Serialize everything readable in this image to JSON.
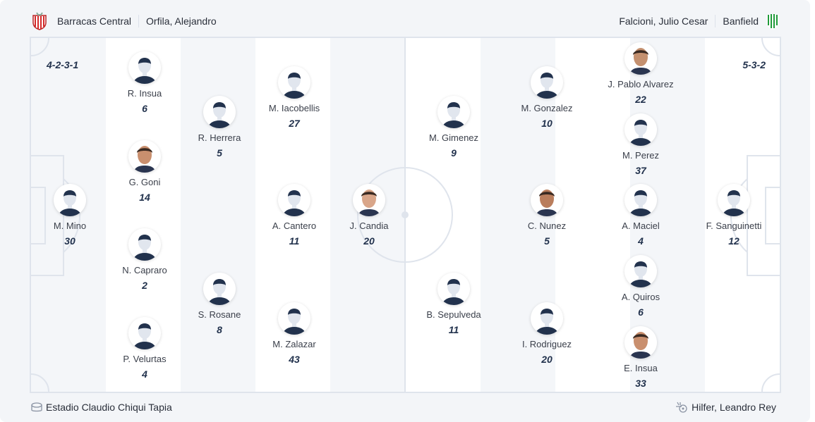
{
  "home": {
    "team": "Barracas Central",
    "coach": "Orfila, Alejandro",
    "formation": "4-2-3-1",
    "players": [
      {
        "name": "M. Mino",
        "number": "30",
        "photo": false
      },
      {
        "name": "R. Insua",
        "number": "6",
        "photo": false
      },
      {
        "name": "G. Goni",
        "number": "14",
        "photo": true
      },
      {
        "name": "N. Capraro",
        "number": "2",
        "photo": false
      },
      {
        "name": "P. Velurtas",
        "number": "4",
        "photo": false
      },
      {
        "name": "R. Herrera",
        "number": "5",
        "photo": false
      },
      {
        "name": "S. Rosane",
        "number": "8",
        "photo": false
      },
      {
        "name": "M. Iacobellis",
        "number": "27",
        "photo": false
      },
      {
        "name": "A. Cantero",
        "number": "11",
        "photo": false
      },
      {
        "name": "M. Zalazar",
        "number": "43",
        "photo": false
      },
      {
        "name": "J. Candia",
        "number": "20",
        "photo": true
      }
    ]
  },
  "away": {
    "team": "Banfield",
    "coach": "Falcioni, Julio Cesar",
    "formation": "5-3-2",
    "players": [
      {
        "name": "M. Gimenez",
        "number": "9",
        "photo": false
      },
      {
        "name": "B. Sepulveda",
        "number": "11",
        "photo": false
      },
      {
        "name": "M. Gonzalez",
        "number": "10",
        "photo": false
      },
      {
        "name": "C. Nunez",
        "number": "5",
        "photo": true
      },
      {
        "name": "I. Rodriguez",
        "number": "20",
        "photo": false
      },
      {
        "name": "J. Pablo Alvarez",
        "number": "22",
        "photo": true
      },
      {
        "name": "M. Perez",
        "number": "37",
        "photo": false
      },
      {
        "name": "A. Maciel",
        "number": "4",
        "photo": false
      },
      {
        "name": "A. Quiros",
        "number": "6",
        "photo": false
      },
      {
        "name": "E. Insua",
        "number": "33",
        "photo": true
      },
      {
        "name": "F. Sanguinetti",
        "number": "12",
        "photo": false
      }
    ]
  },
  "footer": {
    "stadium": "Estadio Claudio Chiqui Tapia",
    "referee": "Hilfer, Leandro Rey",
    "stadium_icon": "stadium-icon",
    "referee_icon": "whistle-icon"
  },
  "colors": {
    "stripe_light": "#f4f6f9",
    "stripe_white": "#ffffff",
    "lines": "#dfe4ec",
    "number": "#22324d",
    "home_crest": "#d42a2a",
    "away_crest": "#1f9a3a"
  }
}
